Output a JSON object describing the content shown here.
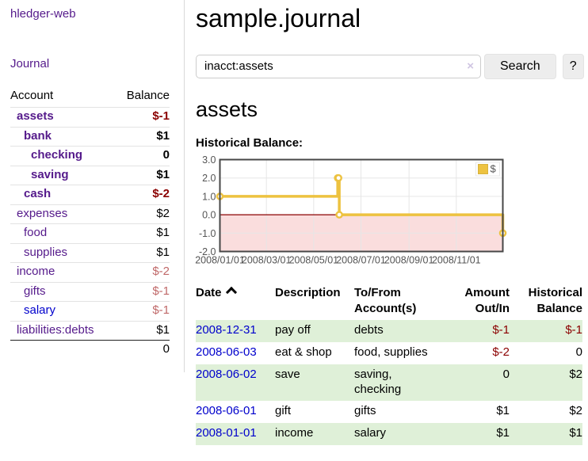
{
  "app": {
    "title": "hledger-web"
  },
  "sidebar": {
    "nav": {
      "journal_label": "Journal"
    },
    "table": {
      "account_header": "Account",
      "balance_header": "Balance"
    },
    "accounts": [
      {
        "name": "assets",
        "depth": 0,
        "bold": true,
        "balance": "$-1",
        "neg": "strong"
      },
      {
        "name": "bank",
        "depth": 1,
        "bold": true,
        "balance": "$1"
      },
      {
        "name": "checking",
        "depth": 2,
        "bold": true,
        "balance": "0"
      },
      {
        "name": "saving",
        "depth": 2,
        "bold": true,
        "balance": "$1"
      },
      {
        "name": "cash",
        "depth": 1,
        "bold": true,
        "balance": "$-2",
        "neg": "strong"
      },
      {
        "name": "expenses",
        "depth": 0,
        "bold": false,
        "balance": "$2"
      },
      {
        "name": "food",
        "depth": 1,
        "bold": false,
        "balance": "$1"
      },
      {
        "name": "supplies",
        "depth": 1,
        "bold": false,
        "balance": "$1"
      },
      {
        "name": "income",
        "depth": 0,
        "bold": false,
        "balance": "$-2",
        "neg": "soft"
      },
      {
        "name": "gifts",
        "depth": 1,
        "bold": false,
        "balance": "$-1",
        "neg": "soft"
      },
      {
        "name": "salary",
        "depth": 1,
        "bold": false,
        "balance": "$-1",
        "neg": "soft",
        "link_color": "#0000cc"
      },
      {
        "name": "liabilities:debts",
        "depth": 0,
        "bold": false,
        "balance": "$1"
      }
    ],
    "total": "0"
  },
  "header": {
    "title": "sample.journal"
  },
  "search": {
    "value": "inacct:assets",
    "clear_icon": "×",
    "button_label": "Search",
    "help_label": "?"
  },
  "account_page": {
    "heading": "assets",
    "chart_label": "Historical Balance:"
  },
  "chart_data": {
    "type": "line",
    "step": true,
    "series": [
      {
        "name": "$",
        "color": "#edc240",
        "points": [
          [
            "2008-01-01",
            1
          ],
          [
            "2008-06-01",
            2
          ],
          [
            "2008-06-02",
            2
          ],
          [
            "2008-06-03",
            0
          ],
          [
            "2008-12-31",
            -1
          ]
        ]
      }
    ],
    "xrange": [
      "2008-01-01",
      "2008-12-31"
    ],
    "ylim": [
      -2,
      3
    ],
    "yticks": [
      3,
      2,
      1,
      0,
      -1,
      -2
    ],
    "xticks": [
      {
        "date": "2008-01-01",
        "label": "2008/01/01"
      },
      {
        "date": "2008-03-01",
        "label": "2008/03/01"
      },
      {
        "date": "2008-05-01",
        "label": "2008/05/01"
      },
      {
        "date": "2008-07-01",
        "label": "2008/07/01"
      },
      {
        "date": "2008-09-01",
        "label": "2008/09/01"
      },
      {
        "date": "2008-11-01",
        "label": "2008/11/01"
      }
    ],
    "grid": true,
    "legend_position": "top-right",
    "negative_fill": "#fadddd",
    "zero_line_color": "#8b0000",
    "border_color": "#474747",
    "grid_color": "#e6e6e6",
    "tick_label_color": "#545454"
  },
  "register": {
    "columns": [
      {
        "label": "Date",
        "sort": "ascending"
      },
      {
        "label": "Description"
      },
      {
        "label": "To/From Account(s)"
      },
      {
        "label": "Amount Out/In",
        "align": "right"
      },
      {
        "label": "Historical Balance",
        "align": "right"
      }
    ],
    "rows": [
      {
        "date": "2008-12-31",
        "description": "pay off",
        "accounts": "debts",
        "amount": "$-1",
        "amount_neg": true,
        "balance": "$-1",
        "balance_neg": true
      },
      {
        "date": "2008-06-03",
        "description": "eat & shop",
        "accounts": "food, supplies",
        "amount": "$-2",
        "amount_neg": true,
        "balance": "0",
        "balance_neg": false
      },
      {
        "date": "2008-06-02",
        "description": "save",
        "accounts": "saving, checking",
        "amount": "0",
        "amount_neg": false,
        "balance": "$2",
        "balance_neg": false
      },
      {
        "date": "2008-06-01",
        "description": "gift",
        "accounts": "gifts",
        "amount": "$1",
        "amount_neg": false,
        "balance": "$2",
        "balance_neg": false
      },
      {
        "date": "2008-01-01",
        "description": "income",
        "accounts": "salary",
        "amount": "$1",
        "amount_neg": false,
        "balance": "$1",
        "balance_neg": false
      }
    ]
  },
  "colors": {
    "link_purple": "#551a8b",
    "link_blue": "#0000cc",
    "negative_strong": "#8b0000",
    "negative_soft": "#c0696b",
    "row_stripe_green": "#dff0d8",
    "chart_series_gold": "#edc240",
    "chart_negative_fill": "#fadddd",
    "chart_zero_line": "#8b0000"
  }
}
